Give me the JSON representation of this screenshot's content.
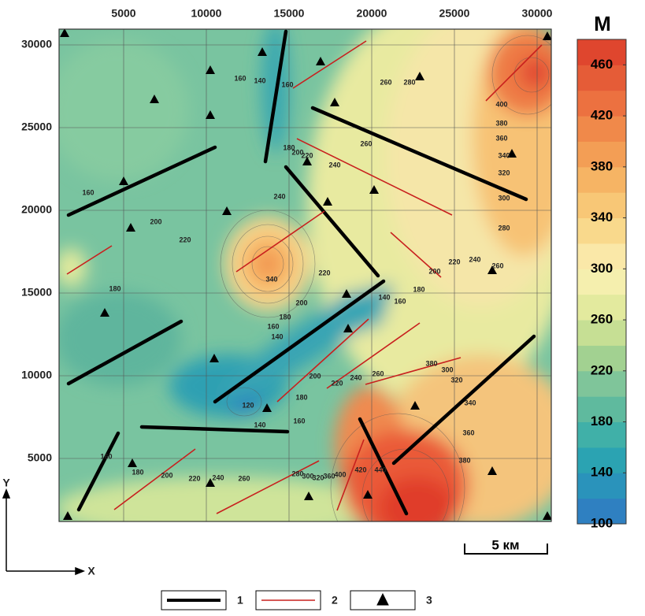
{
  "map": {
    "unit": "M",
    "x_axis": {
      "label": "X",
      "ticks": [
        5000,
        10000,
        15000,
        20000,
        25000,
        30000
      ],
      "lim": [
        0,
        30500
      ]
    },
    "y_axis": {
      "label": "Y",
      "ticks": [
        5000,
        10000,
        15000,
        20000,
        25000,
        30000
      ],
      "lim": [
        0,
        31000
      ]
    },
    "colorbar": {
      "ticks": [
        100,
        140,
        180,
        220,
        260,
        300,
        340,
        380,
        420,
        460
      ],
      "lim": [
        100,
        480
      ]
    },
    "contour_labels": [
      160,
      140,
      160,
      180,
      200,
      220,
      240,
      260,
      260,
      280,
      400,
      380,
      360,
      340,
      320,
      300,
      280,
      260,
      240,
      220,
      200,
      180,
      160,
      140,
      240,
      200,
      220,
      180,
      160,
      220,
      200,
      180,
      160,
      140,
      340,
      120,
      140,
      160,
      180,
      200,
      220,
      240,
      260,
      380,
      300,
      320,
      340,
      360,
      380,
      160,
      180,
      200,
      220,
      240,
      260,
      280,
      300,
      320,
      360,
      400,
      420,
      440
    ],
    "scale_bar": "5 км",
    "legend": [
      "1",
      "2",
      "3"
    ]
  }
}
